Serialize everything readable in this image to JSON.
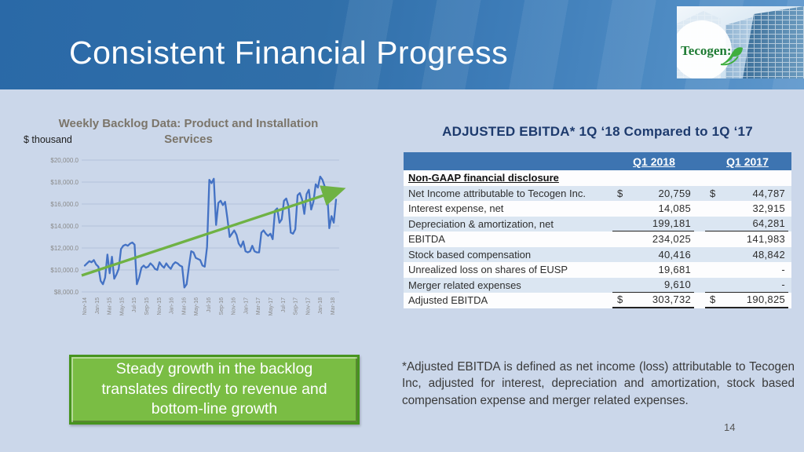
{
  "slide": {
    "title": "Consistent Financial Progress",
    "page_number": "14",
    "logo_text": "Tecogen",
    "accent_colors": {
      "header_blue": "#2a69a7",
      "table_header_blue": "#3d74b1",
      "row_light_blue": "#dbe6f2",
      "line_blue": "#4472c4",
      "arrow_green": "#6fb244",
      "callout_green": "#7abd44",
      "background": "#cbd7ea"
    }
  },
  "chart": {
    "title_line1": "Weekly Backlog Data: Product and Installation",
    "title_line2": "Services",
    "units_label": "$ thousand"
  },
  "chart_data": {
    "type": "line",
    "title": "Weekly Backlog Data: Product and Installation Services",
    "ylabel": "$ thousand",
    "ylim": [
      8000,
      20000
    ],
    "grid": true,
    "y_tick_values": [
      20000,
      18000,
      16000,
      14000,
      12000,
      10000,
      8000
    ],
    "y_tick_labels": [
      "$20,000.0",
      "$18,000.0",
      "$16,000.0",
      "$14,000.0",
      "$12,000.0",
      "$10,000.0",
      "$8,000.0"
    ],
    "x_tick_labels": [
      "Nov-14",
      "Jan-15",
      "Mar-15",
      "May-15",
      "Jul-15",
      "Sep-15",
      "Nov-15",
      "Jan-16",
      "Mar-16",
      "May-16",
      "Jul-16",
      "Sep-16",
      "Nov-16",
      "Jan-17",
      "Mar-17",
      "May-17",
      "Jul-17",
      "Sep-17",
      "Nov-17",
      "Jan-18",
      "Mar-18"
    ],
    "series": [
      {
        "name": "Weekly backlog ($ thousand)",
        "color": "#4472c4",
        "values": [
          10400,
          10600,
          10800,
          10700,
          10900,
          10500,
          10300,
          9000,
          8700,
          9300,
          11400,
          9700,
          11200,
          9200,
          9600,
          10100,
          11900,
          12200,
          12300,
          12200,
          12400,
          12500,
          12300,
          8700,
          9300,
          10200,
          10400,
          10200,
          10300,
          10600,
          10400,
          10100,
          10000,
          10700,
          10400,
          10200,
          10600,
          10300,
          10100,
          10500,
          10700,
          10600,
          10400,
          10300,
          8400,
          8700,
          10300,
          11700,
          11600,
          11100,
          11000,
          10900,
          10400,
          10300,
          12100,
          18200,
          17900,
          18300,
          14100,
          16100,
          16300,
          15900,
          16200,
          14700,
          13000,
          13300,
          13600,
          13200,
          12400,
          12100,
          12600,
          11700,
          11600,
          11700,
          12200,
          11700,
          11600,
          11600,
          13400,
          13600,
          13300,
          13100,
          13300,
          12800,
          15400,
          15600,
          14300,
          14600,
          16300,
          16500,
          15800,
          13400,
          13300,
          13700,
          16800,
          17000,
          16400,
          15100,
          16900,
          17300,
          15500,
          16200,
          17800,
          17500,
          18500,
          18200,
          17600,
          17300,
          13800,
          14900,
          14300,
          16400
        ]
      },
      {
        "name": "Trend arrow",
        "color": "#6fb244",
        "values": [
          9500,
          17300
        ]
      }
    ]
  },
  "ebitda_table": {
    "title": "ADJUSTED EBITDA* 1Q ‘18 Compared to 1Q ‘17",
    "columns": [
      "Q1 2018",
      "Q1 2017"
    ],
    "section_label": "Non-GAAP financial disclosure",
    "rows": [
      {
        "label": "Net Income attributable to Tecogen Inc.",
        "dollar": true,
        "q1_2018": "20,759",
        "q1_2017": "44,787",
        "shaded": true
      },
      {
        "label": "Interest expense, net",
        "dollar": false,
        "q1_2018": "14,085",
        "q1_2017": "32,915",
        "shaded": false
      },
      {
        "label": "Depreciation & amortization, net",
        "dollar": false,
        "q1_2018": "199,181",
        "q1_2017": "64,281",
        "shaded": true,
        "underline_below": true
      },
      {
        "label": "EBITDA",
        "dollar": false,
        "q1_2018": "234,025",
        "q1_2017": "141,983",
        "shaded": false
      },
      {
        "label": "Stock based compensation",
        "dollar": false,
        "q1_2018": "40,416",
        "q1_2017": "48,842",
        "shaded": true
      },
      {
        "label": "Unrealized loss on shares of EUSP",
        "dollar": false,
        "q1_2018": "19,681",
        "q1_2017": "-",
        "shaded": false
      },
      {
        "label": "Merger related expenses",
        "dollar": false,
        "q1_2018": "9,610",
        "q1_2017": "-",
        "shaded": true,
        "underline_below": true
      },
      {
        "label": "Adjusted EBITDA",
        "dollar": true,
        "q1_2018": "303,732",
        "q1_2017": "190,825",
        "shaded": false,
        "total": true
      }
    ]
  },
  "callout": {
    "text": "Steady growth in the backlog translates directly to revenue and bottom-line growth"
  },
  "footnote": {
    "text": "*Adjusted EBITDA is defined as net income (loss) attributable to Tecogen Inc, adjusted for interest, depreciation and amortization, stock based compensation expense and merger related expenses."
  }
}
